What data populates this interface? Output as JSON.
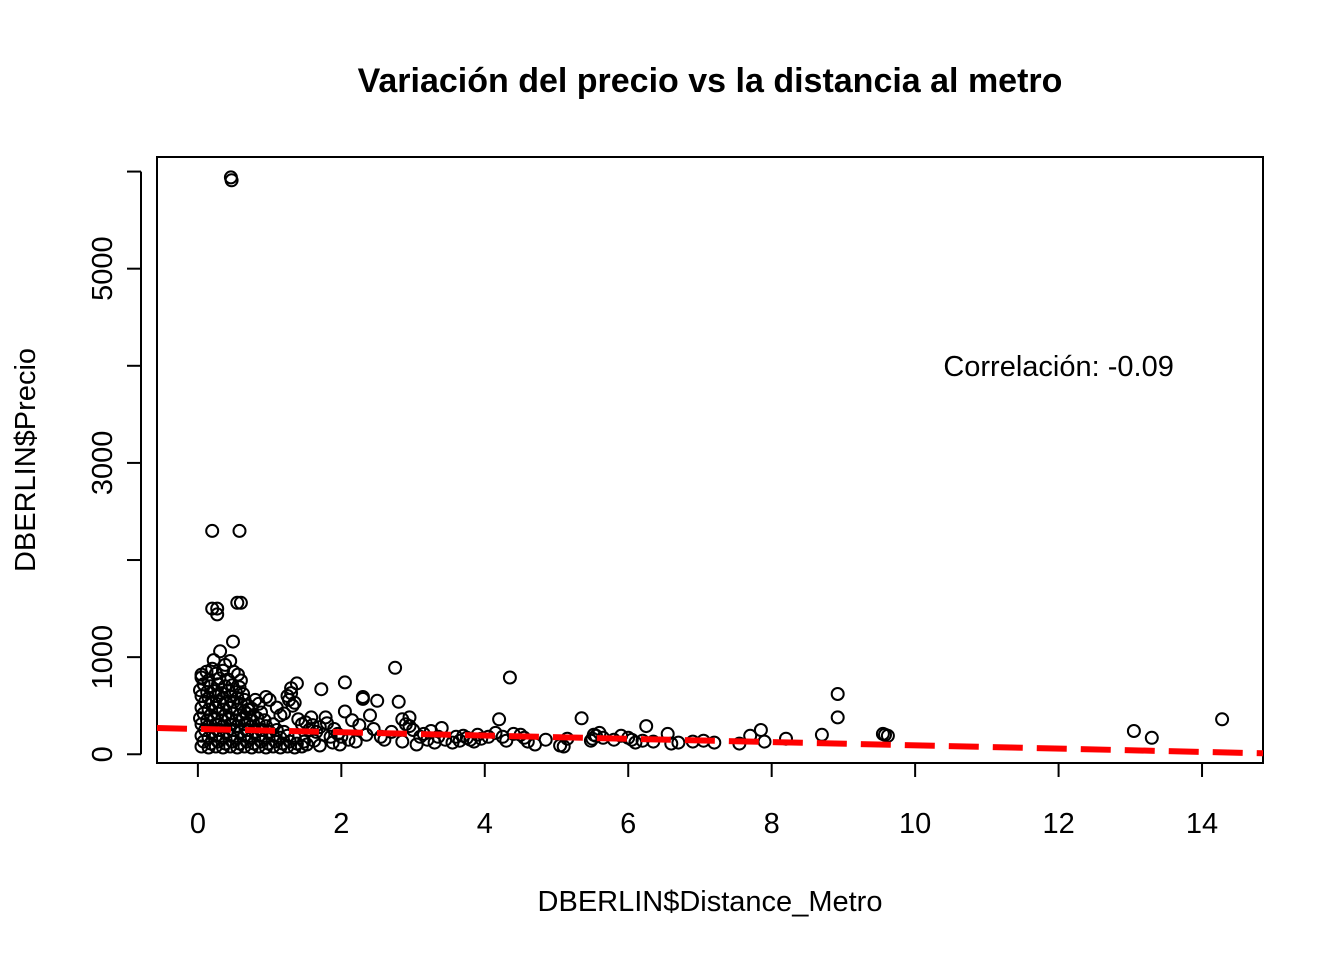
{
  "chart_data": {
    "type": "scatter",
    "title": "Variación del precio vs la distancia al metro",
    "xlabel": "DBERLIN$Distance_Metro",
    "ylabel": "DBERLIN$Precio",
    "xlim": [
      -0.57,
      14.85
    ],
    "ylim": [
      -90,
      6150
    ],
    "x_ticks": [
      0,
      2,
      4,
      6,
      8,
      10,
      12,
      14
    ],
    "x_tick_labels": [
      "0",
      "2",
      "4",
      "6",
      "8",
      "10",
      "12",
      "14"
    ],
    "y_ticks": [
      0,
      1000,
      2000,
      3000,
      4000,
      5000,
      6000
    ],
    "y_tick_labels": [
      "0",
      "1000",
      "",
      "3000",
      "",
      "5000",
      ""
    ],
    "annotation": {
      "text": "Correlación: -0.09",
      "x": 12.0,
      "y": 4000
    },
    "trend_line": {
      "color": "#ff0000",
      "style": "dashed",
      "points": [
        [
          -0.57,
          270
        ],
        [
          14.85,
          10
        ]
      ]
    },
    "marker_color": "#000000",
    "points": [
      [
        0.46,
        5940
      ],
      [
        0.47,
        5910
      ],
      [
        0.2,
        2300
      ],
      [
        0.58,
        2300
      ],
      [
        0.2,
        1500
      ],
      [
        0.27,
        1500
      ],
      [
        0.27,
        1440
      ],
      [
        0.55,
        1560
      ],
      [
        0.6,
        1560
      ],
      [
        0.49,
        1160
      ],
      [
        0.31,
        1060
      ],
      [
        0.22,
        970
      ],
      [
        0.45,
        960
      ],
      [
        0.38,
        920
      ],
      [
        0.2,
        880
      ],
      [
        0.12,
        850
      ],
      [
        0.05,
        820
      ],
      [
        0.25,
        830
      ],
      [
        0.35,
        860
      ],
      [
        0.5,
        850
      ],
      [
        0.56,
        820
      ],
      [
        0.05,
        790
      ],
      [
        0.15,
        760
      ],
      [
        0.3,
        780
      ],
      [
        0.42,
        770
      ],
      [
        0.6,
        760
      ],
      [
        0.08,
        720
      ],
      [
        0.18,
        700
      ],
      [
        0.28,
        720
      ],
      [
        0.38,
        700
      ],
      [
        0.48,
        710
      ],
      [
        0.58,
        690
      ],
      [
        0.03,
        660
      ],
      [
        0.13,
        640
      ],
      [
        0.23,
        650
      ],
      [
        0.33,
        630
      ],
      [
        0.43,
        660
      ],
      [
        0.53,
        640
      ],
      [
        0.63,
        620
      ],
      [
        0.05,
        600
      ],
      [
        0.15,
        580
      ],
      [
        0.25,
        600
      ],
      [
        0.35,
        580
      ],
      [
        0.45,
        600
      ],
      [
        0.55,
        580
      ],
      [
        0.65,
        560
      ],
      [
        0.1,
        540
      ],
      [
        0.2,
        520
      ],
      [
        0.3,
        540
      ],
      [
        0.4,
        520
      ],
      [
        0.5,
        540
      ],
      [
        0.6,
        520
      ],
      [
        0.7,
        500
      ],
      [
        0.05,
        480
      ],
      [
        0.15,
        460
      ],
      [
        0.25,
        480
      ],
      [
        0.35,
        460
      ],
      [
        0.45,
        480
      ],
      [
        0.55,
        460
      ],
      [
        0.65,
        440
      ],
      [
        0.75,
        470
      ],
      [
        0.08,
        420
      ],
      [
        0.18,
        400
      ],
      [
        0.28,
        420
      ],
      [
        0.38,
        400
      ],
      [
        0.48,
        420
      ],
      [
        0.58,
        400
      ],
      [
        0.68,
        420
      ],
      [
        0.78,
        400
      ],
      [
        0.88,
        430
      ],
      [
        0.03,
        370
      ],
      [
        0.13,
        350
      ],
      [
        0.23,
        370
      ],
      [
        0.33,
        350
      ],
      [
        0.43,
        370
      ],
      [
        0.53,
        350
      ],
      [
        0.63,
        370
      ],
      [
        0.73,
        350
      ],
      [
        0.83,
        370
      ],
      [
        0.93,
        350
      ],
      [
        0.05,
        310
      ],
      [
        0.15,
        290
      ],
      [
        0.25,
        310
      ],
      [
        0.35,
        290
      ],
      [
        0.45,
        310
      ],
      [
        0.55,
        290
      ],
      [
        0.65,
        310
      ],
      [
        0.75,
        290
      ],
      [
        0.85,
        310
      ],
      [
        0.95,
        290
      ],
      [
        1.05,
        310
      ],
      [
        0.1,
        250
      ],
      [
        0.2,
        230
      ],
      [
        0.3,
        250
      ],
      [
        0.4,
        230
      ],
      [
        0.5,
        250
      ],
      [
        0.6,
        230
      ],
      [
        0.7,
        250
      ],
      [
        0.8,
        230
      ],
      [
        0.9,
        250
      ],
      [
        1.0,
        230
      ],
      [
        1.1,
        250
      ],
      [
        1.2,
        230
      ],
      [
        0.05,
        190
      ],
      [
        0.15,
        170
      ],
      [
        0.25,
        190
      ],
      [
        0.35,
        170
      ],
      [
        0.45,
        190
      ],
      [
        0.55,
        170
      ],
      [
        0.65,
        190
      ],
      [
        0.75,
        170
      ],
      [
        0.85,
        190
      ],
      [
        0.95,
        170
      ],
      [
        1.05,
        190
      ],
      [
        1.15,
        170
      ],
      [
        1.25,
        190
      ],
      [
        1.35,
        170
      ],
      [
        0.08,
        130
      ],
      [
        0.18,
        110
      ],
      [
        0.28,
        130
      ],
      [
        0.38,
        110
      ],
      [
        0.48,
        130
      ],
      [
        0.58,
        110
      ],
      [
        0.68,
        130
      ],
      [
        0.78,
        110
      ],
      [
        0.88,
        130
      ],
      [
        0.98,
        110
      ],
      [
        1.08,
        130
      ],
      [
        1.18,
        110
      ],
      [
        1.28,
        130
      ],
      [
        1.38,
        110
      ],
      [
        1.48,
        130
      ],
      [
        0.05,
        80
      ],
      [
        0.15,
        70
      ],
      [
        0.25,
        80
      ],
      [
        0.35,
        70
      ],
      [
        0.45,
        80
      ],
      [
        0.55,
        70
      ],
      [
        0.65,
        80
      ],
      [
        0.75,
        70
      ],
      [
        0.85,
        80
      ],
      [
        0.95,
        70
      ],
      [
        1.05,
        80
      ],
      [
        1.15,
        70
      ],
      [
        1.25,
        80
      ],
      [
        1.35,
        70
      ],
      [
        1.45,
        80
      ],
      [
        0.7,
        460
      ],
      [
        0.85,
        520
      ],
      [
        0.95,
        590
      ],
      [
        1.0,
        560
      ],
      [
        0.8,
        560
      ],
      [
        1.1,
        480
      ],
      [
        1.2,
        420
      ],
      [
        1.25,
        600
      ],
      [
        1.3,
        630
      ],
      [
        1.27,
        560
      ],
      [
        1.35,
        530
      ],
      [
        1.32,
        500
      ],
      [
        1.38,
        730
      ],
      [
        1.3,
        680
      ],
      [
        1.15,
        400
      ],
      [
        1.5,
        330
      ],
      [
        1.6,
        300
      ],
      [
        1.7,
        280
      ],
      [
        1.8,
        320
      ],
      [
        1.9,
        260
      ],
      [
        1.55,
        250
      ],
      [
        1.65,
        230
      ],
      [
        1.75,
        200
      ],
      [
        1.85,
        180
      ],
      [
        1.95,
        210
      ],
      [
        1.45,
        310
      ],
      [
        1.4,
        360
      ],
      [
        1.58,
        380
      ],
      [
        1.72,
        670
      ],
      [
        1.78,
        380
      ],
      [
        1.62,
        140
      ],
      [
        1.88,
        120
      ],
      [
        1.98,
        100
      ],
      [
        1.52,
        100
      ],
      [
        1.7,
        90
      ],
      [
        2.05,
        740
      ],
      [
        2.05,
        440
      ],
      [
        2.15,
        350
      ],
      [
        2.3,
        590
      ],
      [
        2.3,
        570
      ],
      [
        2.5,
        550
      ],
      [
        2.4,
        400
      ],
      [
        2.25,
        300
      ],
      [
        2.35,
        200
      ],
      [
        2.45,
        260
      ],
      [
        2.55,
        180
      ],
      [
        2.2,
        130
      ],
      [
        2.6,
        150
      ],
      [
        2.7,
        230
      ],
      [
        2.1,
        150
      ],
      [
        2.0,
        180
      ],
      [
        2.75,
        890
      ],
      [
        2.8,
        540
      ],
      [
        2.85,
        360
      ],
      [
        2.95,
        380
      ],
      [
        2.9,
        310
      ],
      [
        2.95,
        290
      ],
      [
        3.0,
        250
      ],
      [
        3.1,
        180
      ],
      [
        3.2,
        150
      ],
      [
        3.3,
        120
      ],
      [
        3.15,
        210
      ],
      [
        3.25,
        240
      ],
      [
        2.85,
        130
      ],
      [
        3.05,
        100
      ],
      [
        3.35,
        180
      ],
      [
        3.4,
        270
      ],
      [
        3.45,
        150
      ],
      [
        3.55,
        120
      ],
      [
        3.6,
        180
      ],
      [
        3.7,
        190
      ],
      [
        3.8,
        150
      ],
      [
        3.9,
        200
      ],
      [
        3.65,
        140
      ],
      [
        3.75,
        170
      ],
      [
        3.85,
        130
      ],
      [
        3.95,
        160
      ],
      [
        4.05,
        180
      ],
      [
        4.15,
        220
      ],
      [
        4.2,
        360
      ],
      [
        4.25,
        180
      ],
      [
        4.3,
        140
      ],
      [
        4.35,
        790
      ],
      [
        4.4,
        210
      ],
      [
        4.5,
        200
      ],
      [
        4.55,
        170
      ],
      [
        4.6,
        130
      ],
      [
        4.7,
        100
      ],
      [
        4.85,
        150
      ],
      [
        5.05,
        90
      ],
      [
        5.1,
        80
      ],
      [
        5.15,
        160
      ],
      [
        5.35,
        370
      ],
      [
        5.5,
        160
      ],
      [
        5.55,
        190
      ],
      [
        5.6,
        220
      ],
      [
        5.52,
        200
      ],
      [
        5.48,
        140
      ],
      [
        5.65,
        170
      ],
      [
        5.8,
        150
      ],
      [
        5.9,
        190
      ],
      [
        6.0,
        170
      ],
      [
        6.05,
        150
      ],
      [
        6.1,
        120
      ],
      [
        6.2,
        140
      ],
      [
        6.25,
        290
      ],
      [
        6.35,
        130
      ],
      [
        6.55,
        210
      ],
      [
        6.6,
        110
      ],
      [
        6.7,
        120
      ],
      [
        6.9,
        130
      ],
      [
        7.05,
        140
      ],
      [
        7.2,
        120
      ],
      [
        7.55,
        110
      ],
      [
        7.7,
        190
      ],
      [
        7.85,
        250
      ],
      [
        7.9,
        130
      ],
      [
        8.2,
        160
      ],
      [
        8.7,
        200
      ],
      [
        8.92,
        620
      ],
      [
        8.92,
        380
      ],
      [
        9.55,
        210
      ],
      [
        9.62,
        190
      ],
      [
        9.58,
        200
      ],
      [
        13.05,
        240
      ],
      [
        13.3,
        170
      ],
      [
        14.28,
        360
      ]
    ]
  }
}
